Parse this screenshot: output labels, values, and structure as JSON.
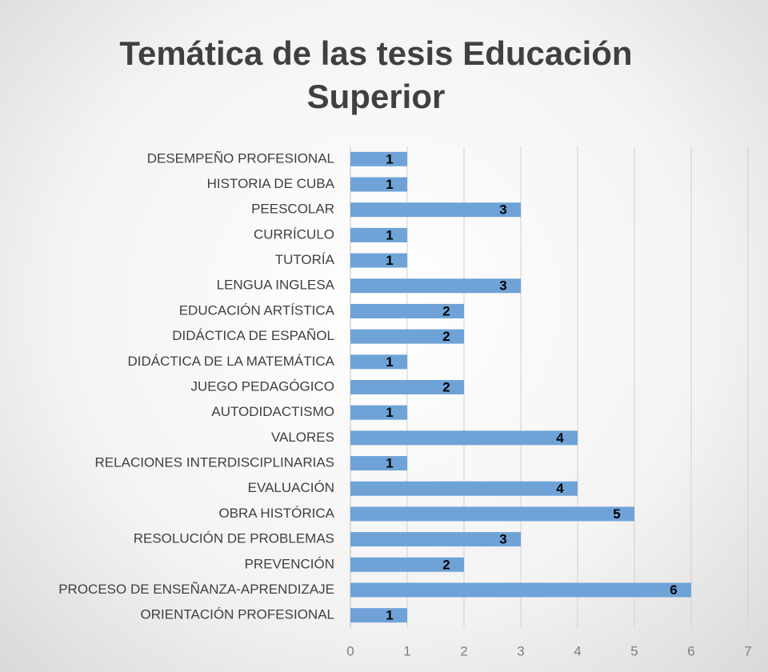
{
  "chart_data": {
    "type": "bar",
    "orientation": "horizontal",
    "title": "Temática de las tesis Educación Superior",
    "categories": [
      "DESEMPEÑO PROFESIONAL",
      "HISTORIA DE CUBA",
      "PEESCOLAR",
      "CURRÍCULO",
      "TUTORÍA",
      "LENGUA INGLESA",
      "EDUCACIÓN ARTÍSTICA",
      "DIDÁCTICA DE ESPAÑOL",
      "DIDÁCTICA DE LA MATEMÁTICA",
      "JUEGO PEDAGÓGICO",
      "AUTODIDACTISMO",
      "VALORES",
      "RELACIONES INTERDISCIPLINARIAS",
      "EVALUACIÓN",
      "OBRA HISTÓRICA",
      "RESOLUCIÓN DE PROBLEMAS",
      "PREVENCIÓN",
      "PROCESO DE ENSEÑANZA-APRENDIZAJE",
      "ORIENTACIÓN PROFESIONAL"
    ],
    "values": [
      1,
      1,
      3,
      1,
      1,
      3,
      2,
      2,
      1,
      2,
      1,
      4,
      1,
      4,
      5,
      3,
      2,
      6,
      1
    ],
    "color": "#6fa3d8",
    "xlim": [
      0,
      7
    ],
    "xticks": [
      0,
      1,
      2,
      3,
      4,
      5,
      6,
      7
    ],
    "grid": true
  }
}
